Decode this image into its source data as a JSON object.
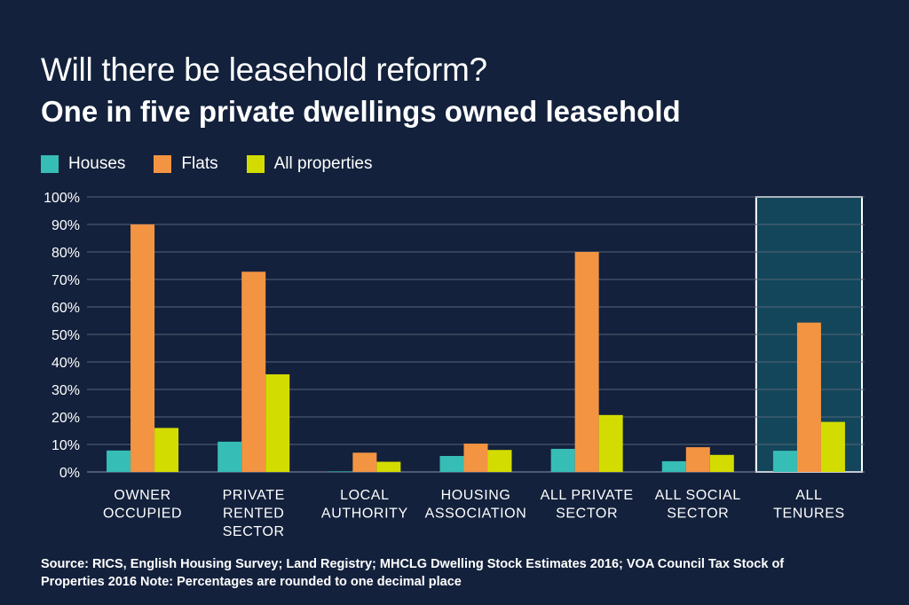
{
  "title": "Will there be leasehold reform?",
  "subtitle": "One in five private dwellings owned leasehold",
  "source": "Source:  RICS, English Housing Survey; Land Registry; MHCLG Dwelling Stock Estimates 2016; VOA Council Tax Stock of Properties 2016 Note: Percentages are rounded to one decimal place",
  "colors": {
    "background": "#13213c",
    "houses": "#36bdb6",
    "flats": "#f39443",
    "all_properties": "#d3dc00",
    "highlight": "#13465a"
  },
  "chart_data": {
    "type": "bar",
    "title": "One in five private dwellings owned leasehold",
    "xlabel": "",
    "ylabel": "",
    "ylim": [
      0,
      100
    ],
    "yticks": [
      "0%",
      "10%",
      "20%",
      "30%",
      "40%",
      "50%",
      "60%",
      "70%",
      "80%",
      "90%",
      "100%"
    ],
    "grid": true,
    "legend_position": "top-left",
    "categories": [
      [
        "OWNER",
        "OCCUPIED"
      ],
      [
        "PRIVATE",
        "RENTED",
        "SECTOR"
      ],
      [
        "LOCAL",
        "AUTHORITY"
      ],
      [
        "HOUSING",
        "ASSOCIATION"
      ],
      [
        "ALL PRIVATE",
        "SECTOR"
      ],
      [
        "ALL SOCIAL",
        "SECTOR"
      ],
      [
        "ALL",
        "TENURES"
      ]
    ],
    "highlighted_category": "ALL TENURES",
    "series": [
      {
        "name": "Houses",
        "color": "#36bdb6",
        "values": [
          7.8,
          11,
          0.2,
          5.8,
          8.4,
          3.9,
          7.7
        ]
      },
      {
        "name": "Flats",
        "color": "#f39443",
        "values": [
          90,
          72.8,
          7,
          10.3,
          80,
          9,
          54.3
        ]
      },
      {
        "name": "All properties",
        "color": "#d3dc00",
        "values": [
          16,
          35.5,
          3.7,
          8,
          20.7,
          6.2,
          18.2
        ]
      }
    ]
  }
}
